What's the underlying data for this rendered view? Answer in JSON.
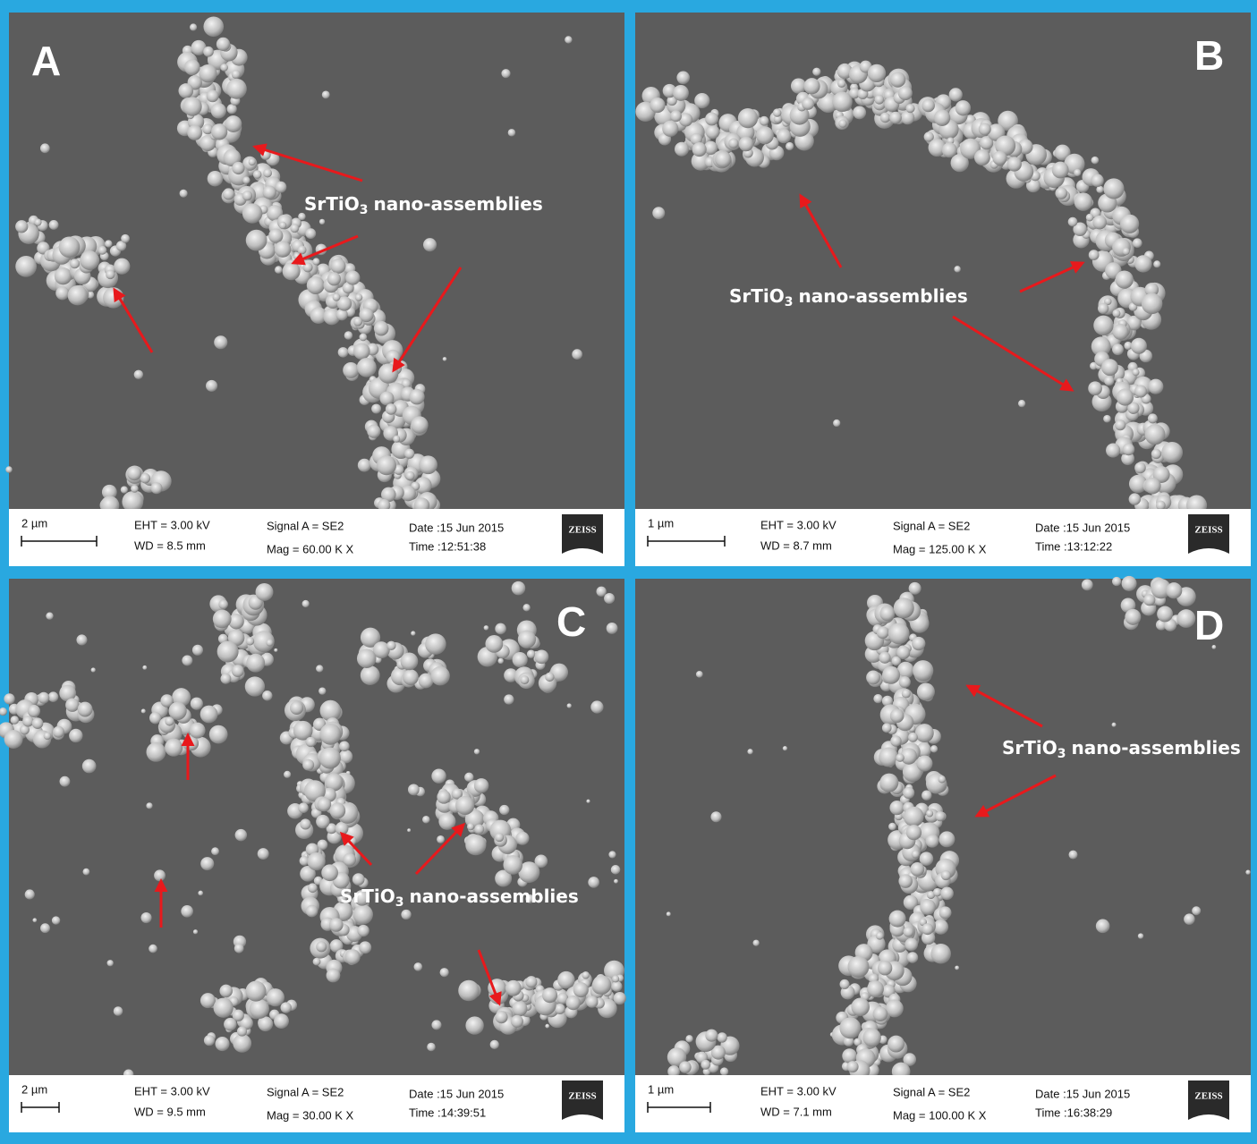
{
  "panels": [
    {
      "letter": "A",
      "annotation": {
        "formula": "SrTiO",
        "subscript": "3",
        "rest": "nano-assemblies"
      },
      "info": {
        "scale": "2 µm",
        "eht": "EHT = 3.00 kV",
        "wd": "WD = 8.5 mm",
        "signal": "Signal A = SE2",
        "mag": "Mag =  60.00 K X",
        "date": "Date :15 Jun 2015",
        "time": "Time :12:51:38",
        "logo": "ZEISS"
      }
    },
    {
      "letter": "B",
      "annotation": {
        "formula": "SrTiO",
        "subscript": "3",
        "rest": "nano-assemblies"
      },
      "info": {
        "scale": "1 µm",
        "eht": "EHT = 3.00 kV",
        "wd": "WD = 8.7 mm",
        "signal": "Signal A = SE2",
        "mag": "Mag =  125.00 K X",
        "date": "Date :15 Jun 2015",
        "time": "Time :13:12:22",
        "logo": "ZEISS"
      }
    },
    {
      "letter": "C",
      "annotation": {
        "formula": "SrTiO",
        "subscript": "3",
        "rest": "nano-assemblies"
      },
      "info": {
        "scale": "2 µm",
        "eht": "EHT = 3.00 kV",
        "wd": "WD = 9.5 mm",
        "signal": "Signal A = SE2",
        "mag": "Mag =  30.00 K X",
        "date": "Date :15 Jun 2015",
        "time": "Time :14:39:51",
        "logo": "ZEISS"
      }
    },
    {
      "letter": "D",
      "annotation": {
        "formula": "SrTiO",
        "subscript": "3",
        "rest": "nano-assemblies"
      },
      "info": {
        "scale": "1 µm",
        "eht": "EHT = 3.00 kV",
        "wd": "WD = 7.1 mm",
        "signal": "Signal A = SE2",
        "mag": "Mag =  100.00 K X",
        "date": "Date :15 Jun 2015",
        "time": "Time :16:38:29",
        "logo": "ZEISS"
      }
    }
  ]
}
